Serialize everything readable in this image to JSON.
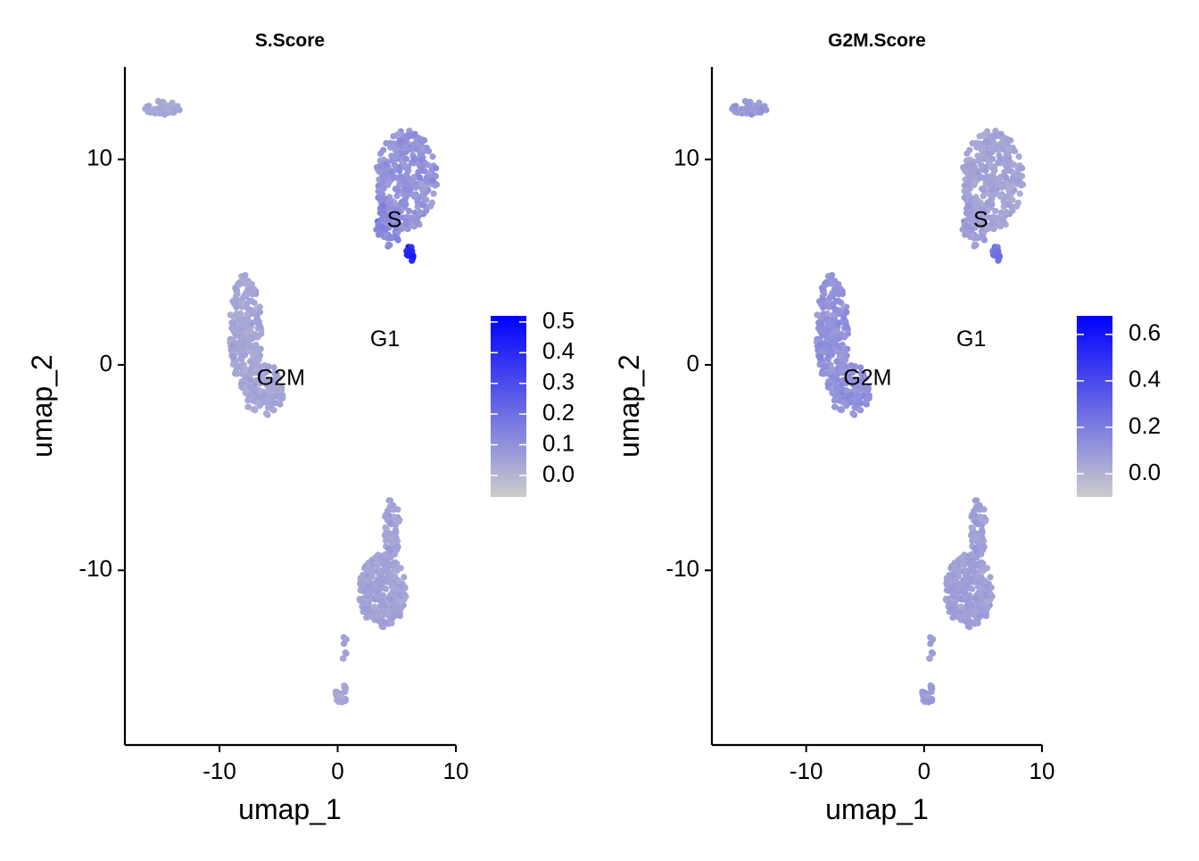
{
  "chart_data": [
    {
      "type": "scatter",
      "title": "S.Score",
      "xlabel": "umap_1",
      "ylabel": "umap_2",
      "xlim": [
        -18,
        10
      ],
      "ylim": [
        -18.5,
        14.5
      ],
      "xticks": [
        "-10",
        "0",
        "10"
      ],
      "yticks": [
        "-10",
        "0",
        "10"
      ],
      "grid": false,
      "legend_position": "right",
      "colorbar": {
        "min": -0.07,
        "max": 0.52,
        "ticks": [
          "0.5",
          "0.4",
          "0.3",
          "0.2",
          "0.1",
          "0.0"
        ],
        "colors": [
          "#cccccc",
          "#0000ff"
        ]
      },
      "cluster_labels": [
        {
          "text": "S",
          "x": 4.8,
          "y": 7.0
        },
        {
          "text": "G1",
          "x": 4.0,
          "y": 1.2
        },
        {
          "text": "G2M",
          "x": -4.8,
          "y": -0.7
        }
      ],
      "clusters": [
        {
          "shape": "blob",
          "cx": 5.8,
          "cy": 9.0,
          "rx": 2.6,
          "ry": 2.4,
          "n": 320,
          "mean": 0.09,
          "spread": 0.06
        },
        {
          "shape": "blob",
          "cx": 4.3,
          "cy": 6.8,
          "rx": 1.1,
          "ry": 1.1,
          "n": 60,
          "mean": 0.13,
          "spread": 0.07
        },
        {
          "shape": "blob",
          "cx": 6.1,
          "cy": 5.4,
          "rx": 0.35,
          "ry": 0.4,
          "n": 12,
          "mean": 0.42,
          "spread": 0.08
        },
        {
          "shape": "blob",
          "cx": -7.8,
          "cy": 1.6,
          "rx": 1.4,
          "ry": 2.8,
          "n": 240,
          "mean": 0.04,
          "spread": 0.04
        },
        {
          "shape": "blob",
          "cx": -6.3,
          "cy": -1.2,
          "rx": 1.8,
          "ry": 1.3,
          "n": 110,
          "mean": 0.04,
          "spread": 0.04
        },
        {
          "shape": "blob",
          "cx": -14.8,
          "cy": 12.5,
          "rx": 1.5,
          "ry": 0.35,
          "n": 45,
          "mean": 0.04,
          "spread": 0.03
        },
        {
          "shape": "blob",
          "cx": 3.8,
          "cy": -11.0,
          "rx": 2.0,
          "ry": 1.8,
          "n": 270,
          "mean": 0.05,
          "spread": 0.04
        },
        {
          "shape": "blob",
          "cx": 4.6,
          "cy": -8.0,
          "rx": 0.7,
          "ry": 1.5,
          "n": 60,
          "mean": 0.05,
          "spread": 0.04
        },
        {
          "shape": "blob",
          "cx": 0.3,
          "cy": -16.0,
          "rx": 0.5,
          "ry": 0.5,
          "n": 25,
          "mean": 0.04,
          "spread": 0.03
        },
        {
          "shape": "blob",
          "cx": 0.6,
          "cy": -13.9,
          "rx": 0.25,
          "ry": 0.7,
          "n": 8,
          "mean": 0.05,
          "spread": 0.03
        }
      ]
    },
    {
      "type": "scatter",
      "title": "G2M.Score",
      "xlabel": "umap_1",
      "ylabel": "umap_2",
      "xlim": [
        -18,
        10
      ],
      "ylim": [
        -18.5,
        14.5
      ],
      "xticks": [
        "-10",
        "0",
        "10"
      ],
      "yticks": [
        "-10",
        "0",
        "10"
      ],
      "grid": false,
      "legend_position": "right",
      "colorbar": {
        "min": -0.1,
        "max": 0.68,
        "ticks": [
          "0.6",
          "0.4",
          "0.2",
          "0.0"
        ],
        "colors": [
          "#cccccc",
          "#0000ff"
        ]
      },
      "cluster_labels": [
        {
          "text": "S",
          "x": 4.8,
          "y": 7.0
        },
        {
          "text": "G1",
          "x": 4.0,
          "y": 1.2
        },
        {
          "text": "G2M",
          "x": -4.8,
          "y": -0.7
        }
      ],
      "clusters": [
        {
          "shape": "blob",
          "cx": 5.8,
          "cy": 9.0,
          "rx": 2.6,
          "ry": 2.4,
          "n": 320,
          "mean": 0.05,
          "spread": 0.05
        },
        {
          "shape": "blob",
          "cx": 4.3,
          "cy": 6.8,
          "rx": 1.1,
          "ry": 1.1,
          "n": 60,
          "mean": 0.08,
          "spread": 0.06
        },
        {
          "shape": "blob",
          "cx": 6.1,
          "cy": 5.4,
          "rx": 0.35,
          "ry": 0.4,
          "n": 12,
          "mean": 0.25,
          "spread": 0.08
        },
        {
          "shape": "blob",
          "cx": -7.8,
          "cy": 1.6,
          "rx": 1.4,
          "ry": 2.8,
          "n": 240,
          "mean": 0.12,
          "spread": 0.07
        },
        {
          "shape": "blob",
          "cx": -6.3,
          "cy": -1.2,
          "rx": 1.8,
          "ry": 1.3,
          "n": 110,
          "mean": 0.12,
          "spread": 0.07
        },
        {
          "shape": "blob",
          "cx": -14.8,
          "cy": 12.5,
          "rx": 1.5,
          "ry": 0.35,
          "n": 45,
          "mean": 0.1,
          "spread": 0.06
        },
        {
          "shape": "blob",
          "cx": 3.8,
          "cy": -11.0,
          "rx": 2.0,
          "ry": 1.8,
          "n": 270,
          "mean": 0.07,
          "spread": 0.05
        },
        {
          "shape": "blob",
          "cx": 4.6,
          "cy": -8.0,
          "rx": 0.7,
          "ry": 1.5,
          "n": 60,
          "mean": 0.07,
          "spread": 0.05
        },
        {
          "shape": "blob",
          "cx": 0.3,
          "cy": -16.0,
          "rx": 0.5,
          "ry": 0.5,
          "n": 25,
          "mean": 0.09,
          "spread": 0.05
        },
        {
          "shape": "blob",
          "cx": 0.6,
          "cy": -13.9,
          "rx": 0.25,
          "ry": 0.7,
          "n": 8,
          "mean": 0.08,
          "spread": 0.05
        }
      ]
    }
  ]
}
